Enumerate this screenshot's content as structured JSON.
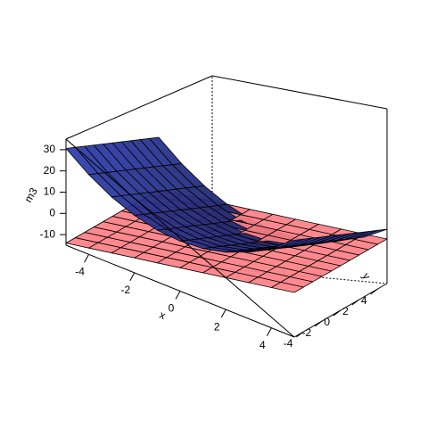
{
  "chart_data": {
    "type": "surface3d",
    "xlabel": "x",
    "ylabel": "y",
    "zlabel": "m3",
    "x_ticks": [
      -4,
      -2,
      0,
      2,
      4
    ],
    "y_ticks": [
      -4,
      -2,
      0,
      2,
      4
    ],
    "z_ticks": [
      -10,
      0,
      10,
      20,
      30
    ],
    "xlim": [
      -5,
      5
    ],
    "ylim": [
      -5,
      5
    ],
    "zlim": [
      -15,
      35
    ],
    "grid_count": 10,
    "series": [
      {
        "surface": "plane",
        "color": "#ff7f85",
        "z_values": [
          [
            -14,
            -14,
            -14,
            -14,
            -14,
            -14,
            -14,
            -14,
            -14,
            -14,
            -14
          ],
          [
            -12,
            -12,
            -12,
            -12,
            -12,
            -12,
            -12,
            -12,
            -12,
            -12,
            -12
          ],
          [
            -10,
            -10,
            -10,
            -10,
            -10,
            -10,
            -10,
            -10,
            -10,
            -10,
            -10
          ],
          [
            -8,
            -8,
            -8,
            -8,
            -8,
            -8,
            -8,
            -8,
            -8,
            -8,
            -8
          ],
          [
            -6,
            -6,
            -6,
            -6,
            -6,
            -6,
            -6,
            -6,
            -6,
            -6,
            -6
          ],
          [
            -4,
            -4,
            -4,
            -4,
            -4,
            -4,
            -4,
            -4,
            -4,
            -4,
            -4
          ],
          [
            -2,
            -2,
            -2,
            -2,
            -2,
            -2,
            -2,
            -2,
            -2,
            -2,
            -2
          ],
          [
            0,
            0,
            0,
            0,
            0,
            0,
            0,
            0,
            0,
            0,
            0
          ],
          [
            2,
            2,
            2,
            2,
            2,
            2,
            2,
            2,
            2,
            2,
            2
          ],
          [
            4,
            4,
            4,
            4,
            4,
            4,
            4,
            4,
            4,
            4,
            4
          ],
          [
            6,
            6,
            6,
            6,
            6,
            6,
            6,
            6,
            6,
            6,
            6
          ]
        ]
      },
      {
        "surface": "paraboloid",
        "color": "#2e3db2",
        "z_values": [
          [
            30.6,
            28.6,
            26.6,
            24.6,
            22.6,
            20.6,
            18.6,
            16.6,
            14.6,
            12.6,
            10.6
          ],
          [
            22.6,
            20.6,
            18.6,
            16.6,
            14.6,
            12.6,
            10.6,
            8.6,
            6.6,
            4.6,
            2.6
          ],
          [
            16.4,
            14.4,
            12.4,
            10.4,
            8.4,
            6.4,
            4.4,
            2.4,
            0.4,
            -1.6,
            -3.6
          ],
          [
            12.0,
            10.0,
            8.0,
            6.0,
            4.0,
            2.0,
            0.0,
            -2.0,
            -4.0,
            -6.0,
            -8.0
          ],
          [
            9.4,
            7.4,
            5.4,
            3.4,
            1.4,
            -0.6,
            -2.6,
            -4.6,
            -6.6,
            -8.6,
            -10.6
          ],
          [
            8.6,
            6.6,
            4.6,
            2.6,
            0.6,
            -1.4,
            -3.4,
            -5.4,
            -7.4,
            -9.4,
            -11.4
          ],
          [
            9.4,
            7.4,
            5.4,
            3.4,
            1.4,
            -0.6,
            -2.6,
            -4.6,
            -6.6,
            -8.6,
            -10.6
          ],
          [
            12.0,
            10.0,
            8.0,
            6.0,
            4.0,
            2.0,
            0.0,
            -2.0,
            -4.0,
            -6.0,
            -8.0
          ],
          [
            16.4,
            14.4,
            12.4,
            10.4,
            8.4,
            6.4,
            4.4,
            2.4,
            0.4,
            -1.6,
            -3.6
          ],
          [
            22.6,
            20.6,
            18.6,
            16.6,
            14.6,
            12.6,
            10.6,
            8.6,
            6.6,
            4.6,
            2.6
          ],
          [
            30.6,
            28.6,
            26.6,
            24.6,
            22.6,
            20.6,
            18.6,
            16.6,
            14.6,
            12.6,
            10.6
          ]
        ]
      }
    ]
  }
}
